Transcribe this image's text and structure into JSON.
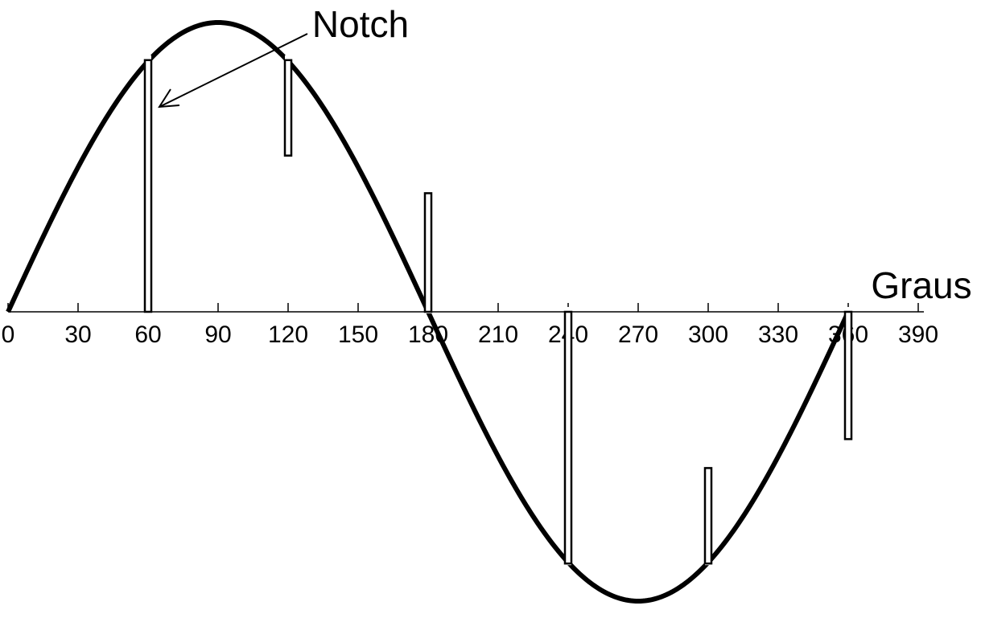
{
  "chart_data": {
    "type": "line",
    "title": "",
    "xlabel": "Graus",
    "ylabel": "",
    "xlim": [
      0,
      390
    ],
    "ylim": [
      -1,
      1
    ],
    "xticks": [
      0,
      30,
      60,
      90,
      120,
      150,
      180,
      210,
      240,
      270,
      300,
      330,
      360,
      390
    ],
    "grid": false,
    "series": [
      {
        "function": "sin",
        "x_start": 0,
        "x_end": 360,
        "values_at_ticks": [
          0,
          0.5,
          0.87,
          1,
          0.87,
          0.5,
          0,
          -0.5,
          -0.87,
          -1,
          -0.87,
          -0.5,
          0
        ]
      }
    ],
    "notches": [
      {
        "x": 60,
        "from": 0.87,
        "to": 0
      },
      {
        "x": 120,
        "from": 0.87,
        "to": 0.54
      },
      {
        "x": 180,
        "from": 0,
        "to": 0.41
      },
      {
        "x": 240,
        "from": -0.87,
        "to": 0
      },
      {
        "x": 300,
        "from": -0.87,
        "to": -0.54
      },
      {
        "x": 360,
        "from": 0,
        "to": -0.44
      }
    ],
    "annotations": [
      {
        "text": "Notch",
        "points_to_x": 60
      }
    ],
    "colors": {
      "line": "#000000",
      "background": "#ffffff"
    }
  }
}
